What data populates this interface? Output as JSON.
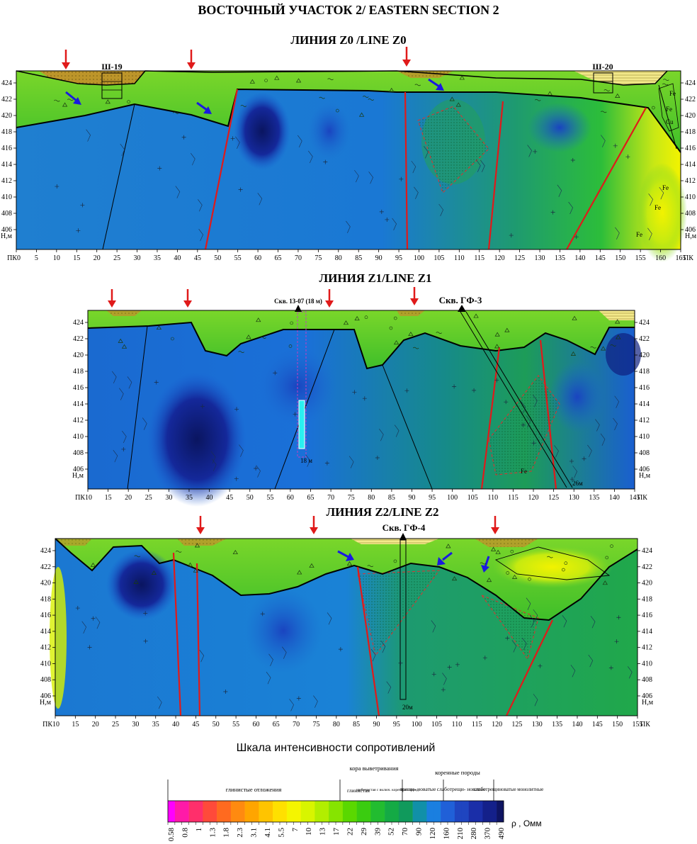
{
  "page": {
    "title": "ВОСТОЧНЫЙ УЧАСТОК 2/ EASTERN SECTION 2"
  },
  "lines": {
    "z0": {
      "label": "ЛИНИЯ Z0 /LINE Z0",
      "pk_ticks": [
        "0",
        "5",
        "10",
        "15",
        "20",
        "25",
        "30",
        "35",
        "40",
        "45",
        "50",
        "55",
        "60",
        "65",
        "70",
        "75",
        "80",
        "85",
        "90",
        "95",
        "100",
        "105",
        "110",
        "115",
        "120",
        "125",
        "130",
        "135",
        "140",
        "145",
        "150",
        "155",
        "160",
        "165"
      ],
      "shafts": [
        "Ш-19",
        "Ш-20"
      ],
      "ore_labels": [
        "Fe",
        "Fe",
        "Cu",
        "Fe",
        "Fe",
        "Fe"
      ]
    },
    "z1": {
      "label": "ЛИНИЯ Z1/LINE Z1",
      "pk_ticks": [
        "10",
        "15",
        "20",
        "25",
        "30",
        "35",
        "40",
        "45",
        "50",
        "55",
        "60",
        "65",
        "70",
        "75",
        "80",
        "85",
        "90",
        "95",
        "100",
        "105",
        "110",
        "115",
        "120",
        "125",
        "130",
        "135",
        "140",
        "145"
      ],
      "wells": [
        "Скв. 13-07 (18 м)",
        "Скв. ГФ-3"
      ],
      "depth_labels": [
        "18 м",
        "26м"
      ],
      "ore_labels": [
        "Fe"
      ]
    },
    "z2": {
      "label": "ЛИНИЯ Z2/LINE Z2",
      "pk_ticks": [
        "10",
        "15",
        "20",
        "25",
        "30",
        "35",
        "40",
        "45",
        "50",
        "55",
        "60",
        "65",
        "70",
        "75",
        "80",
        "85",
        "90",
        "95",
        "100",
        "105",
        "110",
        "115",
        "120",
        "125",
        "130",
        "135",
        "140",
        "145",
        "150",
        "155"
      ],
      "wells": [
        "Скв. ГФ-4"
      ],
      "depth_labels": [
        "20м"
      ]
    }
  },
  "axes": {
    "elevation_ticks": [
      "424",
      "422",
      "420",
      "418",
      "416",
      "414",
      "412",
      "410",
      "408",
      "406"
    ],
    "elevation_unit": "Н,м",
    "pk_label": "ПК"
  },
  "legend": {
    "title": "Шкала интенсивности сопротивлений",
    "groups": {
      "clay": "глинистые отложения",
      "crust": "кора выветривания",
      "crust_clay": "глинистая",
      "crust_rubble": "щебенистая с включ. коренных пород",
      "bedrock": "коренные породы",
      "fractured": "трещи- новатые",
      "weakly": "слаботрещи- новатые",
      "monolith": "слаботрещиноватые монолитные"
    },
    "values": [
      "0.58",
      "0.8",
      "1",
      "1.3",
      "1.8",
      "2.3",
      "3.1",
      "4.1",
      "5.5",
      "7",
      "10",
      "13",
      "17",
      "22",
      "29",
      "39",
      "52",
      "70",
      "90",
      "120",
      "160",
      "210",
      "280",
      "370",
      "490"
    ],
    "unit": "ρ , Омм",
    "colors": [
      "#ff00ff",
      "#ff1aa8",
      "#ff2f6b",
      "#ff4a3a",
      "#ff6a1f",
      "#ff8a10",
      "#ffa500",
      "#ffc400",
      "#ffe000",
      "#f5f500",
      "#d8f500",
      "#b2ee00",
      "#86e400",
      "#5ad800",
      "#3acc10",
      "#22bc30",
      "#14aa45",
      "#109a5c",
      "#1190a8",
      "#1a7fe0",
      "#2060d8",
      "#1f45c0",
      "#1a2ea8",
      "#14208a",
      "#0e1462"
    ]
  }
}
